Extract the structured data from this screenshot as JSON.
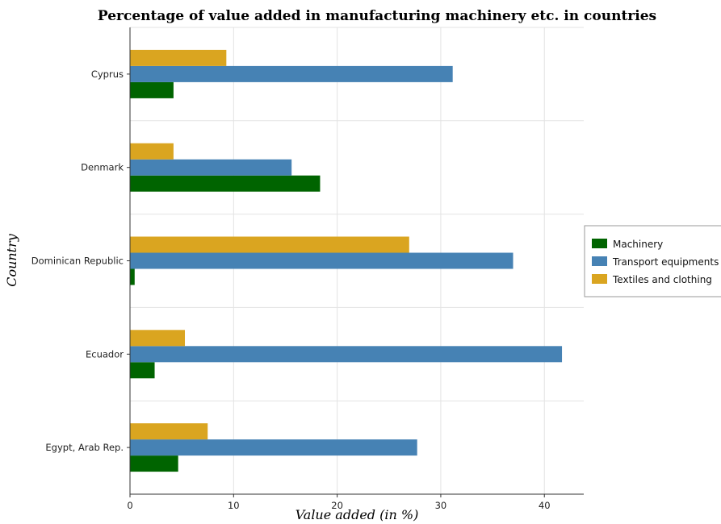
{
  "chart_data": {
    "type": "bar",
    "orientation": "horizontal",
    "title": "Percentage of value added in manufacturing machinery etc. in countries",
    "xlabel": "Value added (in %)",
    "ylabel": "Country",
    "xlim": [
      0,
      43.8
    ],
    "xticks": [
      0,
      10,
      20,
      30,
      40
    ],
    "grid": true,
    "legend_position": "right",
    "categories": [
      "Cyprus",
      "Denmark",
      "Dominican Republic",
      "Ecuador",
      "Egypt, Arab Rep."
    ],
    "series": [
      {
        "name": "Machinery",
        "color": "#006400",
        "values": [
          4.2,
          18.35,
          0.45,
          2.38,
          4.65
        ]
      },
      {
        "name": "Transport equipments",
        "color": "#4682b4",
        "values": [
          31.15,
          15.6,
          36.98,
          41.7,
          27.72
        ]
      },
      {
        "name": "Textiles and clothing",
        "color": "#daa520",
        "values": [
          9.3,
          4.2,
          26.95,
          5.3,
          7.5
        ]
      }
    ]
  }
}
